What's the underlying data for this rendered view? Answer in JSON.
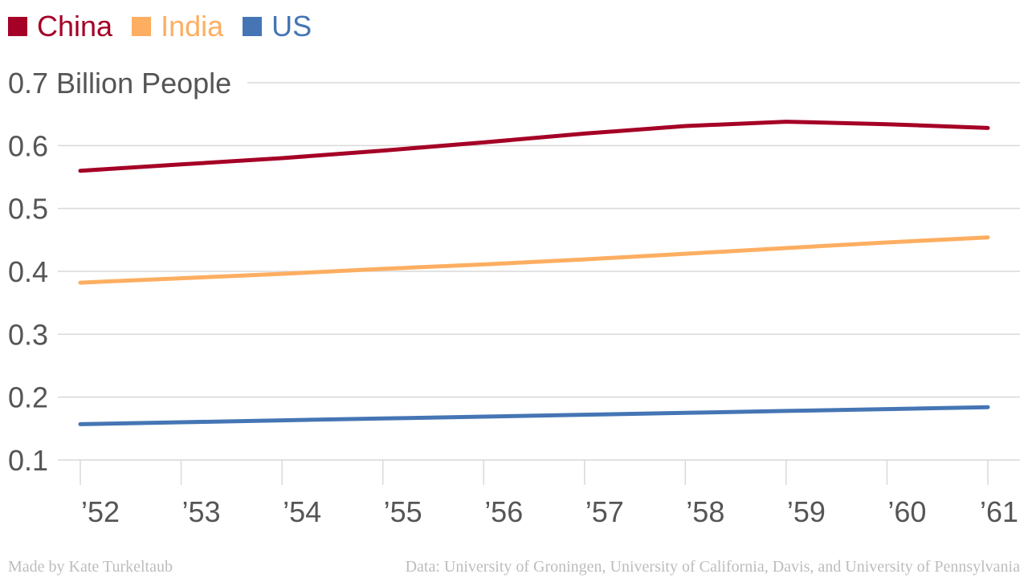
{
  "chart_data": {
    "type": "line",
    "title": "",
    "ylabel_suffix": " Billion People",
    "categories": [
      "’52",
      "’53",
      "’54",
      "’55",
      "’56",
      "’57",
      "’58",
      "’59",
      "’60",
      "’61"
    ],
    "series": [
      {
        "name": "China",
        "color": "#a50026",
        "values": [
          0.56,
          0.57,
          0.58,
          0.592,
          0.605,
          0.619,
          0.631,
          0.638,
          0.634,
          0.628
        ]
      },
      {
        "name": "India",
        "color": "#fdae61",
        "values": [
          0.382,
          0.389,
          0.396,
          0.404,
          0.411,
          0.419,
          0.428,
          0.437,
          0.446,
          0.454
        ]
      },
      {
        "name": "US",
        "color": "#4575b4",
        "values": [
          0.157,
          0.16,
          0.163,
          0.166,
          0.169,
          0.172,
          0.175,
          0.178,
          0.181,
          0.184
        ]
      }
    ],
    "y_ticks": [
      {
        "value": 0.1,
        "label": "0.1"
      },
      {
        "value": 0.2,
        "label": "0.2"
      },
      {
        "value": 0.3,
        "label": "0.3"
      },
      {
        "value": 0.4,
        "label": "0.4"
      },
      {
        "value": 0.5,
        "label": "0.5"
      },
      {
        "value": 0.6,
        "label": "0.6"
      },
      {
        "value": 0.7,
        "label": "0.7 Billion People"
      }
    ],
    "ylim": [
      0.1,
      0.7
    ],
    "grid": true,
    "legend_position": "top-left"
  },
  "footer": {
    "credit": "Made by Kate Turkeltaub",
    "source": "Data: University of Groningen, University of California, Davis, and University of Pennsylvania"
  }
}
